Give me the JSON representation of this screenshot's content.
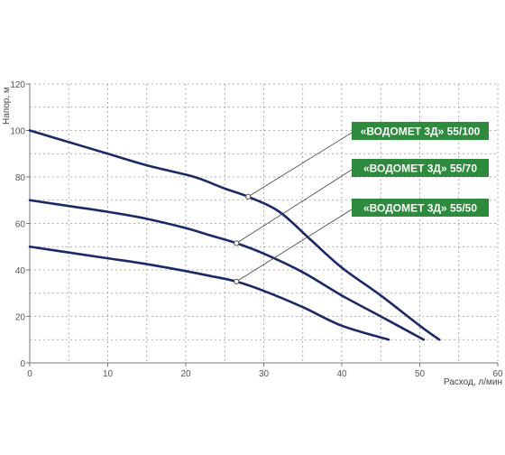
{
  "chart_data": {
    "type": "line",
    "title": "",
    "xlabel": "Расход, л/мин",
    "ylabel": "Напор, м",
    "xlim": [
      0,
      60
    ],
    "ylim": [
      0,
      120
    ],
    "x_ticks": [
      0,
      10,
      20,
      30,
      40,
      50,
      60
    ],
    "y_ticks": [
      0,
      20,
      40,
      60,
      80,
      100,
      120
    ],
    "grid": true,
    "grid_style": "dotted",
    "line_color": "#1b2a66",
    "label_box_color": "#2e8b3e",
    "series": [
      {
        "name": "«ВОДОМЕТ 3Д» 55/100",
        "x": [
          0,
          5,
          10,
          15,
          20,
          22,
          25,
          28,
          32,
          36,
          40,
          45,
          50,
          52.5
        ],
        "y": [
          100,
          95,
          90,
          85,
          81,
          79,
          75,
          71.5,
          65,
          53,
          41,
          29,
          16,
          10
        ],
        "marker_x": 28,
        "marker_y": 71.5
      },
      {
        "name": "«ВОДОМЕТ 3Д» 55/70",
        "x": [
          0,
          5,
          10,
          15,
          20,
          23,
          26.5,
          30,
          35,
          40,
          45,
          50.5
        ],
        "y": [
          70,
          67.5,
          65,
          62,
          58,
          55,
          51.5,
          47,
          39,
          29,
          20,
          10
        ],
        "marker_x": 26.5,
        "marker_y": 51.5
      },
      {
        "name": "«ВОДОМЕТ 3Д» 55/50",
        "x": [
          0,
          5,
          10,
          15,
          20,
          23,
          26.5,
          30,
          35,
          40,
          46
        ],
        "y": [
          50,
          47.5,
          45,
          42.5,
          39.5,
          37.5,
          35,
          31,
          24,
          16,
          10
        ],
        "marker_x": 26.5,
        "marker_y": 35
      }
    ]
  }
}
